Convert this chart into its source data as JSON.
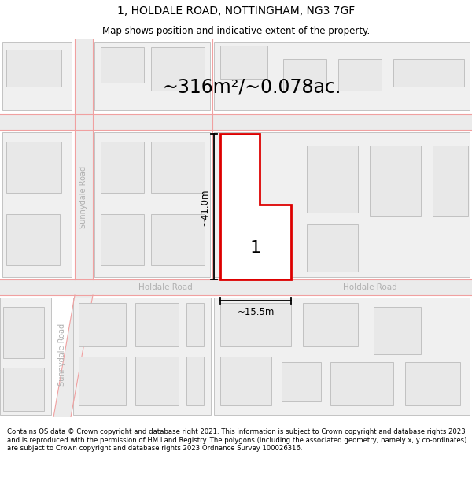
{
  "title": "1, HOLDALE ROAD, NOTTINGHAM, NG3 7GF",
  "subtitle": "Map shows position and indicative extent of the property.",
  "area_label": "~316m²/~0.078ac.",
  "plot_number": "1",
  "width_label": "~15.5m",
  "height_label": "~41.0m",
  "footer": "Contains OS data © Crown copyright and database right 2021. This information is subject to Crown copyright and database rights 2023 and is reproduced with the permission of HM Land Registry. The polygons (including the associated geometry, namely x, y co-ordinates) are subject to Crown copyright and database rights 2023 Ordnance Survey 100026316.",
  "road_line_color": "#f0a0a0",
  "highlight_color": "#dd0000",
  "building_fill": "#e8e8e8",
  "building_edge": "#bbbbbb",
  "road_fill": "#e0e0e0"
}
